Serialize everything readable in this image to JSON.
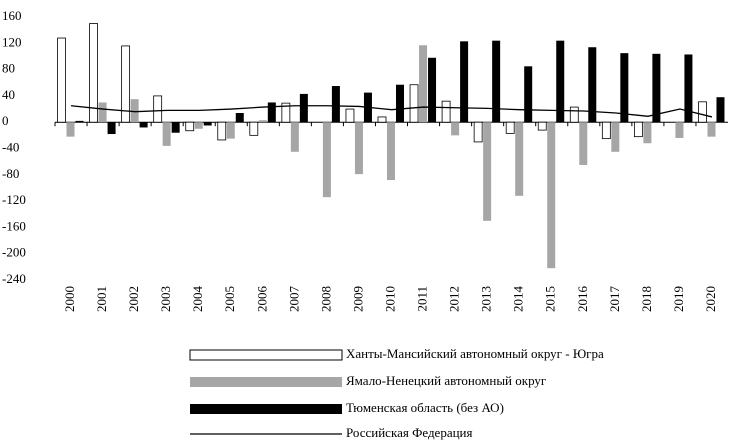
{
  "chart_data": {
    "type": "bar",
    "categories": [
      "2000",
      "2001",
      "2002",
      "2003",
      "2004",
      "2005",
      "2006",
      "2007",
      "2008",
      "2009",
      "2010",
      "2011",
      "2012",
      "2013",
      "2014",
      "2015",
      "2016",
      "2017",
      "2018",
      "2019",
      "2020"
    ],
    "ylim": [
      -240,
      160
    ],
    "yticks": [
      160,
      120,
      80,
      40,
      0,
      -40,
      -80,
      -120,
      -160,
      -200,
      -240
    ],
    "grid": false,
    "legend": "bottom",
    "series": [
      {
        "name": "Ханты-Мансийский автономный округ - Югра",
        "type": "bar",
        "color": "#ffffff",
        "stroke": "#000000",
        "values": [
          128,
          150,
          116,
          40,
          -13,
          -27,
          -20,
          29,
          0,
          20,
          8,
          57,
          32,
          -30,
          -17,
          -12,
          23,
          -25,
          -22,
          0,
          31
        ]
      },
      {
        "name": "Ямало-Ненецкий автономный округ",
        "type": "bar",
        "color": "#a6a6a6",
        "values": [
          -22,
          30,
          35,
          -36,
          -10,
          -25,
          3,
          -45,
          -114,
          -79,
          -88,
          117,
          -20,
          -150,
          -112,
          -222,
          -65,
          -45,
          -32,
          -24,
          -22
        ]
      },
      {
        "name": "Тюменская область (без АО)",
        "type": "bar",
        "color": "#000000",
        "values": [
          2,
          -18,
          -8,
          -16,
          -5,
          14,
          30,
          43,
          55,
          45,
          57,
          98,
          123,
          124,
          85,
          124,
          114,
          105,
          104,
          103,
          38
        ]
      },
      {
        "name": "Российская Федерация",
        "type": "line",
        "color": "#000000",
        "values": [
          25,
          20,
          16,
          18,
          18,
          20,
          23,
          25,
          25,
          24,
          19,
          23,
          22,
          21,
          19,
          18,
          17,
          14,
          9,
          20,
          8
        ]
      }
    ]
  }
}
